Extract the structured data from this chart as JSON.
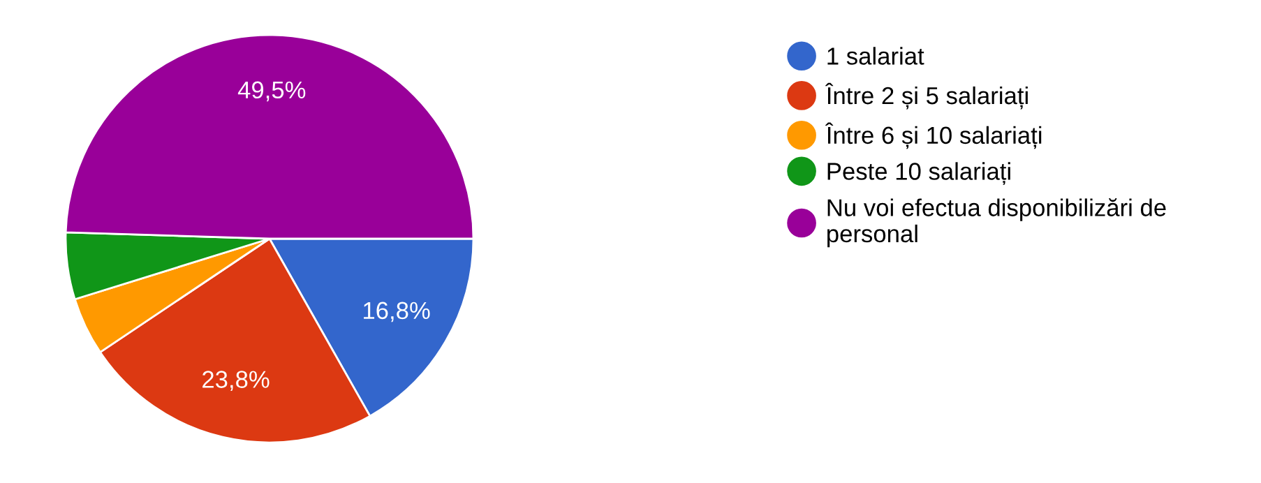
{
  "chart_data": {
    "type": "pie",
    "categories": [
      "1 salariat",
      "Între 2 și 5 salariați",
      "Între 6 și 10 salariați",
      "Peste 10 salariați",
      "Nu voi efectua disponibilizări de personal"
    ],
    "values": [
      16.8,
      23.8,
      4.6,
      5.3,
      49.5
    ],
    "colors": [
      "#3366cc",
      "#dc3912",
      "#ff9900",
      "#109618",
      "#990099"
    ],
    "value_labels": [
      "16,8%",
      "23,8%",
      null,
      null,
      "49,5%"
    ],
    "legend": "right"
  }
}
